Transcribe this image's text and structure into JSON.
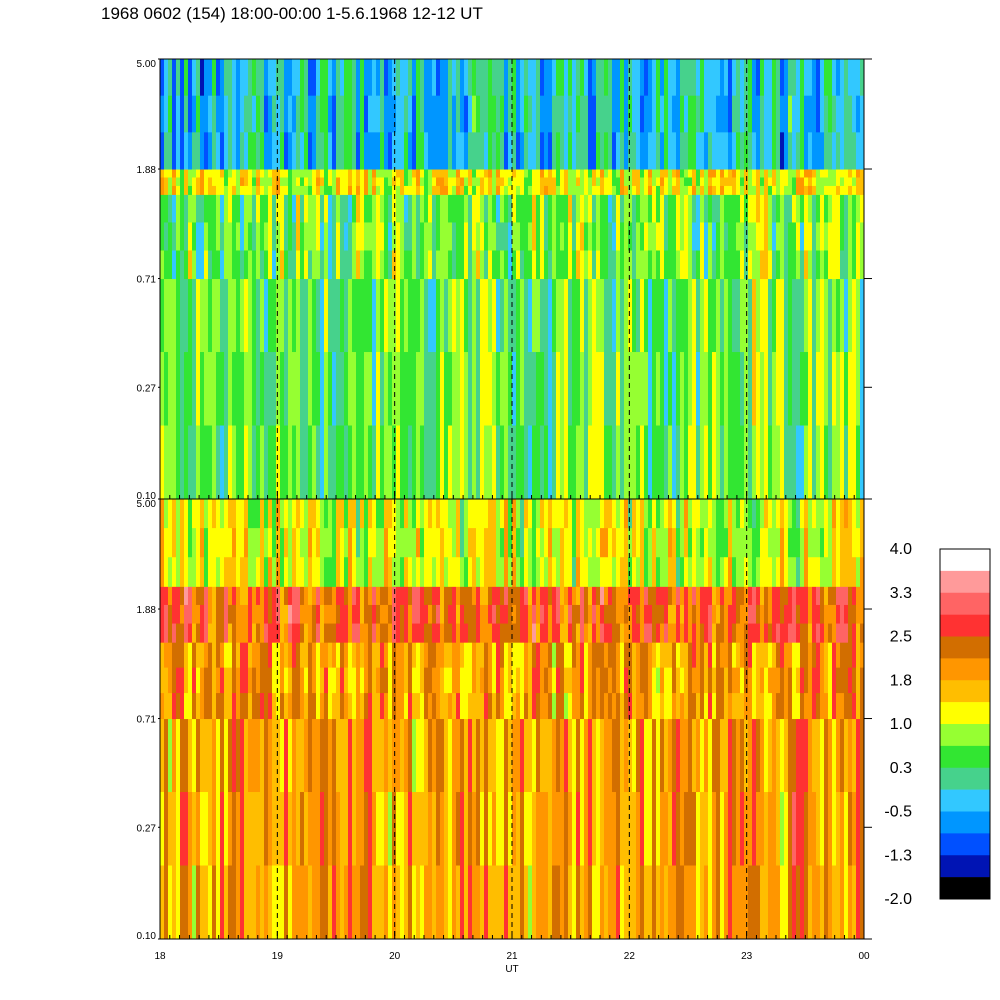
{
  "title": "1968 0602 (154) 18:00-00:00 1-5.6.1968  12-12 UT",
  "chart_data": [
    {
      "type": "heatmap",
      "panel": "upper",
      "y_ticks": [
        "5.00",
        "1.88",
        "0.71",
        "0.27",
        "0.10"
      ],
      "ylim": [
        0.1,
        5.0
      ],
      "y_scale": "log",
      "x_ticks": [
        "18",
        "19",
        "20",
        "21",
        "22",
        "23",
        "00"
      ],
      "dominant_level": 0.3,
      "bands": [
        {
          "y_from": 0.1,
          "y_to": 0.71,
          "value": 0.5
        },
        {
          "y_from": 0.71,
          "y_to": 1.5,
          "value": 0.6
        },
        {
          "y_from": 1.5,
          "y_to": 1.88,
          "value": 1.2
        },
        {
          "y_from": 1.88,
          "y_to": 5.0,
          "value": -0.3
        }
      ]
    },
    {
      "type": "heatmap",
      "panel": "lower",
      "y_ticks": [
        "5.00",
        "1.88",
        "0.71",
        "0.27",
        "0.10"
      ],
      "ylim": [
        0.1,
        5.0
      ],
      "y_scale": "log",
      "x_ticks": [
        "18",
        "19",
        "20",
        "21",
        "22",
        "23",
        "00"
      ],
      "xlabel": "UT",
      "dominant_level": 1.8,
      "bands": [
        {
          "y_from": 0.1,
          "y_to": 0.71,
          "value": 1.9
        },
        {
          "y_from": 0.71,
          "y_to": 1.4,
          "value": 1.9
        },
        {
          "y_from": 1.4,
          "y_to": 2.3,
          "value": 2.4
        },
        {
          "y_from": 2.3,
          "y_to": 5.0,
          "value": 1.1
        }
      ]
    }
  ],
  "colorbar": {
    "labels": [
      "4.0",
      "3.3",
      "2.5",
      "1.8",
      "1.0",
      "0.3",
      "-0.5",
      "-1.3",
      "-2.0"
    ],
    "colors": [
      "#ffffff",
      "#ff9a9a",
      "#ff6464",
      "#ff3232",
      "#d26e00",
      "#ff9600",
      "#ffbe00",
      "#ffff00",
      "#96ff32",
      "#32e632",
      "#46d28c",
      "#32c8ff",
      "#0096ff",
      "#0050ff",
      "#0014b4",
      "#000000"
    ]
  }
}
